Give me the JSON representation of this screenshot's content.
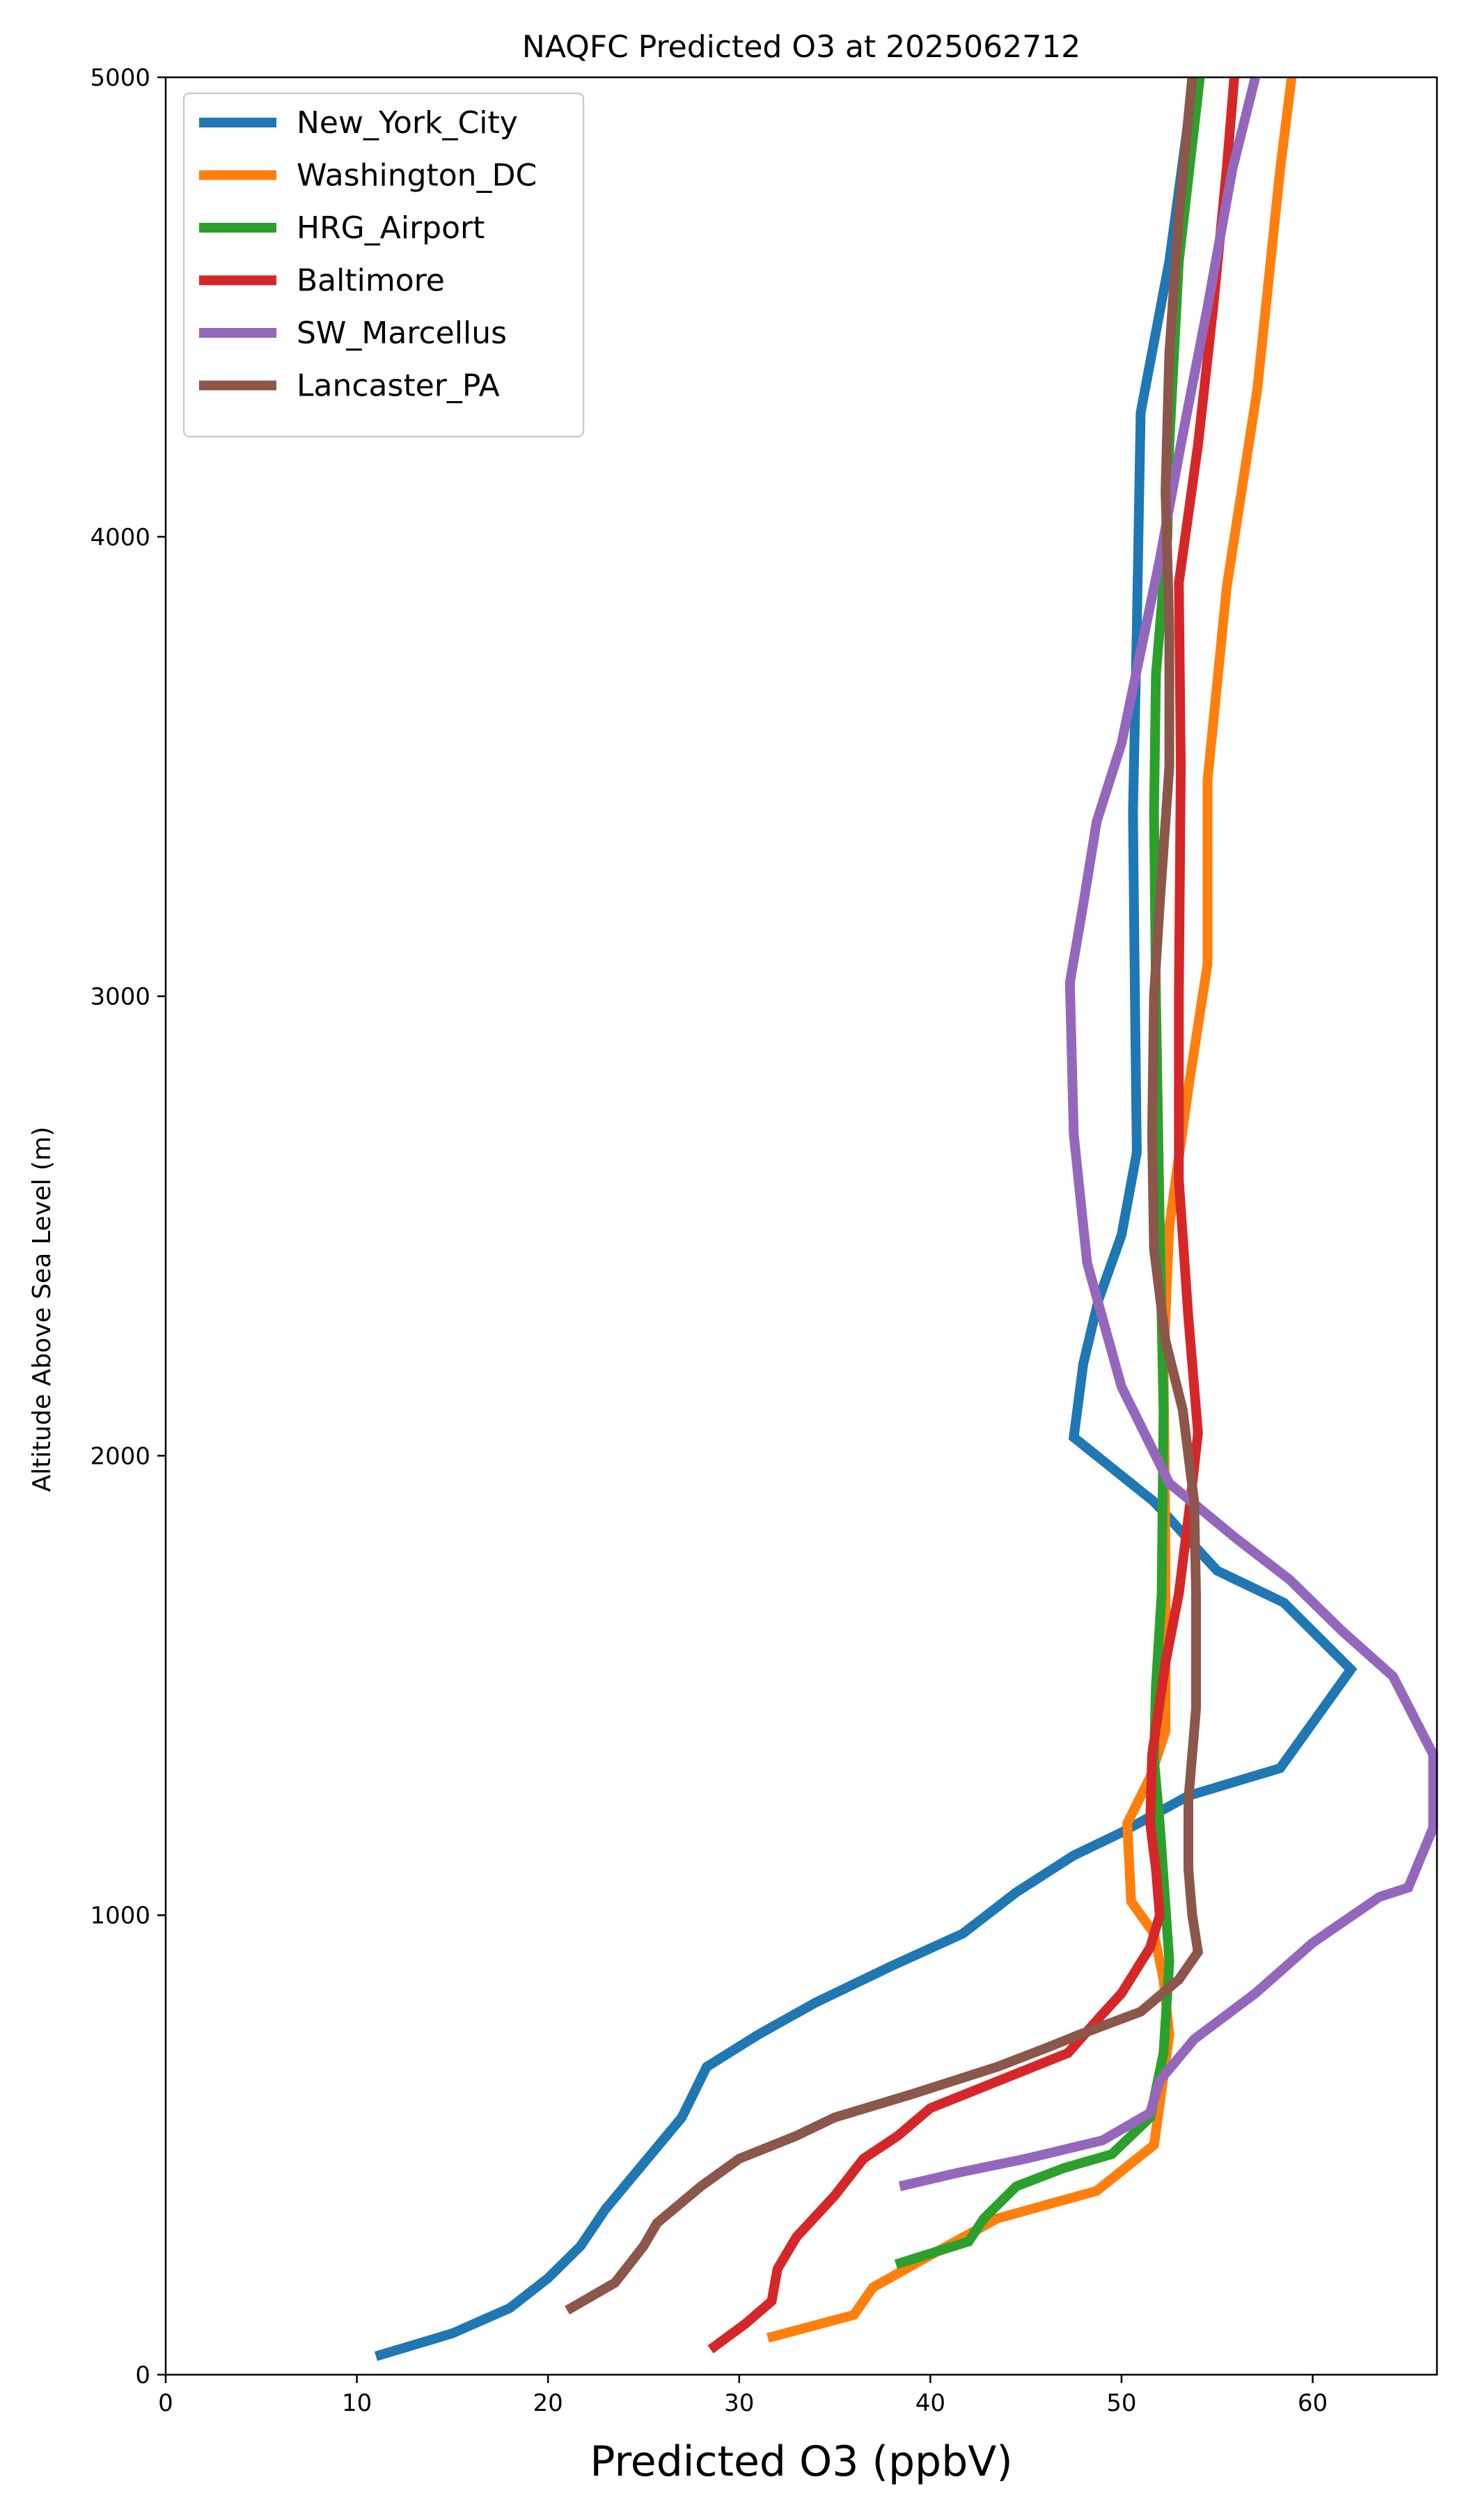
{
  "chart_data": {
    "type": "line",
    "title": "NAQFC Predicted O3 at 2025062712",
    "xlabel": "Predicted O3 (ppbV)",
    "ylabel": "Altitude Above Sea Level (m)",
    "xlim": [
      0,
      66.5
    ],
    "ylim": [
      0,
      5000
    ],
    "x_ticks": [
      0,
      10,
      20,
      30,
      40,
      50,
      60
    ],
    "y_ticks": [
      0,
      1000,
      2000,
      3000,
      4000,
      5000
    ],
    "legend_position": "upper-left",
    "grid": false,
    "series": [
      {
        "name": "New_York_City",
        "color": "#1f77b4",
        "points": [
          [
            11,
            40
          ],
          [
            15,
            90
          ],
          [
            18,
            145
          ],
          [
            20,
            210
          ],
          [
            21.7,
            280
          ],
          [
            23,
            360
          ],
          [
            25,
            460
          ],
          [
            27,
            560
          ],
          [
            28.3,
            670
          ],
          [
            31,
            740
          ],
          [
            34,
            810
          ],
          [
            38,
            890
          ],
          [
            41.7,
            960
          ],
          [
            44.5,
            1050
          ],
          [
            47.5,
            1130
          ],
          [
            50,
            1180
          ],
          [
            53.5,
            1260
          ],
          [
            58.3,
            1320
          ],
          [
            62,
            1535
          ],
          [
            58.5,
            1680
          ],
          [
            55,
            1750
          ],
          [
            51.7,
            1900
          ],
          [
            47.5,
            2040
          ],
          [
            48,
            2200
          ],
          [
            48.8,
            2340
          ],
          [
            50,
            2480
          ],
          [
            50.8,
            2660
          ],
          [
            50.7,
            3000
          ],
          [
            50.6,
            3400
          ],
          [
            50.8,
            3800
          ],
          [
            51,
            4270
          ],
          [
            52.5,
            4600
          ],
          [
            53.8,
            5000
          ]
        ]
      },
      {
        "name": "Washington_DC",
        "color": "#ff7f0e",
        "points": [
          [
            31.5,
            80
          ],
          [
            36,
            130
          ],
          [
            37,
            190
          ],
          [
            40,
            260
          ],
          [
            43.5,
            340
          ],
          [
            48.7,
            400
          ],
          [
            51.7,
            500
          ],
          [
            52.5,
            740
          ],
          [
            52.2,
            860
          ],
          [
            51.7,
            960
          ],
          [
            50.5,
            1030
          ],
          [
            50.3,
            1200
          ],
          [
            51.5,
            1300
          ],
          [
            52.3,
            1400
          ],
          [
            52.3,
            1800
          ],
          [
            52.2,
            2200
          ],
          [
            52.5,
            2500
          ],
          [
            53.5,
            2800
          ],
          [
            54.5,
            3070
          ],
          [
            54.5,
            3470
          ],
          [
            55.5,
            3890
          ],
          [
            57.1,
            4320
          ],
          [
            58.3,
            4800
          ],
          [
            58.9,
            5000
          ]
        ]
      },
      {
        "name": "HRG_Airport",
        "color": "#2ca02c",
        "points": [
          [
            38.2,
            240
          ],
          [
            42,
            290
          ],
          [
            42.8,
            340
          ],
          [
            44.5,
            410
          ],
          [
            47,
            450
          ],
          [
            49.5,
            480
          ],
          [
            51.5,
            560
          ],
          [
            52.2,
            700
          ],
          [
            52.5,
            900
          ],
          [
            52,
            1200
          ],
          [
            51.7,
            1340
          ],
          [
            51.8,
            1500
          ],
          [
            52.1,
            1700
          ],
          [
            52.2,
            2100
          ],
          [
            52,
            2500
          ],
          [
            51.8,
            3000
          ],
          [
            51.7,
            3400
          ],
          [
            51.8,
            3700
          ],
          [
            52.4,
            4000
          ],
          [
            52.5,
            4200
          ],
          [
            53,
            4600
          ],
          [
            54.1,
            5000
          ]
        ]
      },
      {
        "name": "Baltimore",
        "color": "#d62728",
        "points": [
          [
            28.5,
            55
          ],
          [
            30.3,
            110
          ],
          [
            31.7,
            160
          ],
          [
            32,
            230
          ],
          [
            33,
            300
          ],
          [
            35,
            390
          ],
          [
            36.5,
            470
          ],
          [
            38.3,
            520
          ],
          [
            40,
            580
          ],
          [
            43,
            630
          ],
          [
            47.2,
            700
          ],
          [
            48.9,
            780
          ],
          [
            50,
            830
          ],
          [
            51.5,
            930
          ],
          [
            52,
            1000
          ],
          [
            51.8,
            1100
          ],
          [
            51.5,
            1200
          ],
          [
            51.6,
            1350
          ],
          [
            52.3,
            1550
          ],
          [
            53,
            1700
          ],
          [
            53.6,
            1900
          ],
          [
            54,
            2050
          ],
          [
            53.5,
            2300
          ],
          [
            53,
            2600
          ],
          [
            53,
            3000
          ],
          [
            53.1,
            3500
          ],
          [
            53,
            3900
          ],
          [
            54,
            4200
          ],
          [
            54.8,
            4500
          ],
          [
            55.5,
            4800
          ],
          [
            55.9,
            5000
          ]
        ]
      },
      {
        "name": "SW_Marcellus",
        "color": "#9467bd",
        "points": [
          [
            38.4,
            410
          ],
          [
            41.5,
            440
          ],
          [
            45,
            470
          ],
          [
            49,
            510
          ],
          [
            51.5,
            570
          ],
          [
            52,
            640
          ],
          [
            53.8,
            730
          ],
          [
            57,
            830
          ],
          [
            60,
            940
          ],
          [
            63.5,
            1040
          ],
          [
            65,
            1060
          ],
          [
            66.3,
            1190
          ],
          [
            66.3,
            1350
          ],
          [
            64.2,
            1520
          ],
          [
            61.5,
            1620
          ],
          [
            58.8,
            1730
          ],
          [
            56,
            1820
          ],
          [
            52.5,
            1940
          ],
          [
            50,
            2150
          ],
          [
            48.2,
            2420
          ],
          [
            47.5,
            2700
          ],
          [
            47.3,
            3030
          ],
          [
            48,
            3200
          ],
          [
            48.7,
            3380
          ],
          [
            50,
            3550
          ],
          [
            51,
            3750
          ],
          [
            52,
            3950
          ],
          [
            53.1,
            4200
          ],
          [
            54.5,
            4500
          ],
          [
            55.8,
            4800
          ],
          [
            57,
            5000
          ]
        ]
      },
      {
        "name": "Lancaster_PA",
        "color": "#8c564b",
        "points": [
          [
            21,
            140
          ],
          [
            23.5,
            200
          ],
          [
            25,
            280
          ],
          [
            25.7,
            330
          ],
          [
            28,
            410
          ],
          [
            30,
            470
          ],
          [
            33,
            520
          ],
          [
            35,
            560
          ],
          [
            39,
            610
          ],
          [
            43.5,
            670
          ],
          [
            46,
            710
          ],
          [
            47.8,
            740
          ],
          [
            51,
            790
          ],
          [
            53,
            860
          ],
          [
            54,
            920
          ],
          [
            53.7,
            1000
          ],
          [
            53.5,
            1100
          ],
          [
            53.5,
            1250
          ],
          [
            53.9,
            1450
          ],
          [
            53.9,
            1700
          ],
          [
            53.8,
            1900
          ],
          [
            53.2,
            2100
          ],
          [
            52.3,
            2250
          ],
          [
            51.7,
            2450
          ],
          [
            51.6,
            2700
          ],
          [
            51.7,
            3000
          ],
          [
            52,
            3200
          ],
          [
            52.5,
            3500
          ],
          [
            52.5,
            3800
          ],
          [
            52.3,
            4100
          ],
          [
            52.5,
            4400
          ],
          [
            53,
            4700
          ],
          [
            53.7,
            5000
          ]
        ]
      }
    ]
  }
}
